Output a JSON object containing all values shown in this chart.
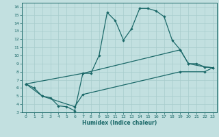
{
  "xlabel": "Humidex (Indice chaleur)",
  "bg_color": "#c2e0e0",
  "line_color": "#1a6868",
  "grid_color": "#a8cccc",
  "xlim": [
    -0.5,
    23.5
  ],
  "ylim": [
    3,
    16.5
  ],
  "xticks": [
    0,
    1,
    2,
    3,
    4,
    5,
    6,
    7,
    8,
    9,
    10,
    11,
    12,
    13,
    14,
    15,
    16,
    17,
    18,
    19,
    20,
    21,
    22,
    23
  ],
  "yticks": [
    3,
    4,
    5,
    6,
    7,
    8,
    9,
    10,
    11,
    12,
    13,
    14,
    15,
    16
  ],
  "line_zigzag_x": [
    0,
    1,
    2,
    3,
    4,
    5,
    6,
    7,
    8,
    9,
    10,
    11,
    12,
    13,
    14,
    15,
    16,
    17,
    18,
    19,
    20,
    21,
    22,
    23
  ],
  "line_zigzag_y": [
    6.5,
    6.0,
    5.0,
    4.8,
    3.8,
    3.7,
    3.2,
    7.8,
    7.8,
    10.0,
    15.3,
    14.3,
    11.9,
    13.3,
    15.8,
    15.8,
    15.5,
    14.8,
    11.9,
    10.7,
    9.0,
    9.0,
    8.6,
    8.5
  ],
  "line_upper_x": [
    0,
    7,
    19,
    20,
    22,
    23
  ],
  "line_upper_y": [
    6.5,
    7.8,
    10.7,
    9.0,
    8.6,
    8.5
  ],
  "line_lower_x": [
    0,
    2,
    6,
    7,
    19,
    22,
    23
  ],
  "line_lower_y": [
    6.5,
    5.0,
    3.7,
    5.2,
    8.0,
    8.0,
    8.5
  ]
}
